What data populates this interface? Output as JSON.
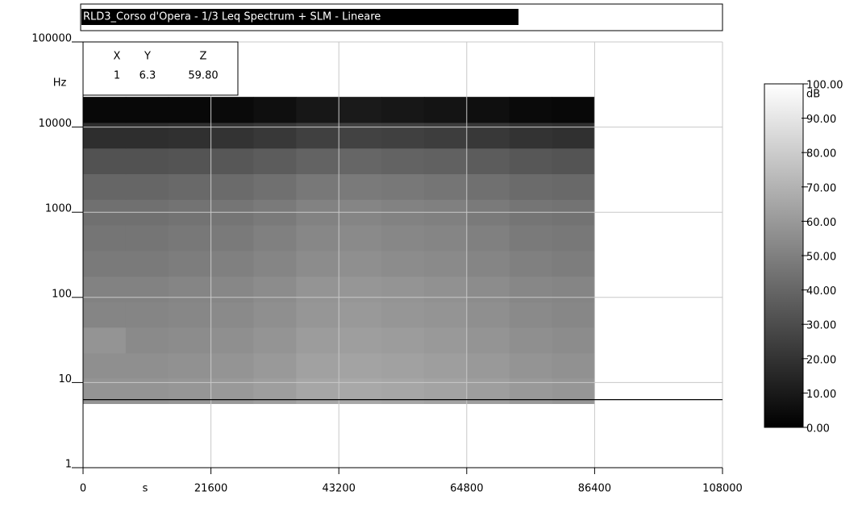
{
  "chart_data": {
    "type": "heatmap",
    "title": "RLD3_Corso d'Opera - 1/3 Leq Spectrum + SLM - Lineare",
    "x_label": "s",
    "y_label": "Hz",
    "log_y": true,
    "grid": true,
    "xlim": [
      0,
      108000
    ],
    "xticks": [
      0,
      21600,
      43200,
      64800,
      86400,
      108000
    ],
    "ylim": [
      1,
      100000
    ],
    "yticks": [
      1,
      10,
      100,
      1000,
      10000,
      100000
    ],
    "xbins": [
      0,
      7200,
      14400,
      21600,
      28800,
      36000,
      43200,
      50400,
      57600,
      64800,
      72000,
      79200,
      86400
    ],
    "ybands": [
      8,
      16,
      31.5,
      63,
      125,
      250,
      500,
      1000,
      2000,
      4000,
      8000,
      16000
    ],
    "z": [
      [
        58,
        58,
        59,
        60,
        62,
        65,
        66,
        65,
        64,
        62,
        60,
        59
      ],
      [
        56,
        56,
        57,
        58,
        60,
        63,
        64,
        63,
        62,
        60,
        58,
        57
      ],
      [
        58,
        54,
        55,
        56,
        58,
        61,
        62,
        61,
        60,
        58,
        56,
        55
      ],
      [
        52,
        52,
        53,
        54,
        56,
        59,
        60,
        59,
        58,
        56,
        54,
        53
      ],
      [
        51,
        51,
        52,
        53,
        55,
        58,
        59,
        58,
        57,
        55,
        53,
        52
      ],
      [
        48,
        48,
        49,
        50,
        52,
        55,
        56,
        55,
        54,
        52,
        50,
        49
      ],
      [
        46,
        46,
        47,
        48,
        50,
        53,
        54,
        53,
        52,
        50,
        48,
        47
      ],
      [
        44,
        44,
        45,
        46,
        48,
        51,
        52,
        51,
        50,
        48,
        46,
        45
      ],
      [
        40,
        40,
        41,
        42,
        44,
        47,
        48,
        47,
        46,
        44,
        42,
        41
      ],
      [
        32,
        32,
        33,
        34,
        36,
        39,
        40,
        39,
        38,
        36,
        34,
        33
      ],
      [
        18,
        18,
        19,
        20,
        22,
        25,
        26,
        25,
        24,
        22,
        20,
        19
      ],
      [
        3,
        3,
        3,
        4,
        6,
        9,
        10,
        9,
        8,
        6,
        4,
        3
      ]
    ],
    "colorbar": {
      "unit": "dB",
      "zlim": [
        0,
        100
      ],
      "zticks": [
        {
          "value": 0,
          "label": "0.00"
        },
        {
          "value": 10,
          "label": "10.00"
        },
        {
          "value": 20,
          "label": "20.00"
        },
        {
          "value": 30,
          "label": "30.00"
        },
        {
          "value": 40,
          "label": "40.00"
        },
        {
          "value": 50,
          "label": "50.00"
        },
        {
          "value": 60,
          "label": "60.00"
        },
        {
          "value": 70,
          "label": "70.00"
        },
        {
          "value": 80,
          "label": "80.00"
        },
        {
          "value": 90,
          "label": "90.00"
        },
        {
          "value": 100,
          "label": "100.00"
        }
      ]
    },
    "cursor": {
      "headers": [
        "X",
        "Y",
        "Z"
      ],
      "values": [
        1,
        6.3,
        59.8
      ],
      "value_labels": [
        "1",
        "6.3",
        "59.80"
      ]
    }
  }
}
